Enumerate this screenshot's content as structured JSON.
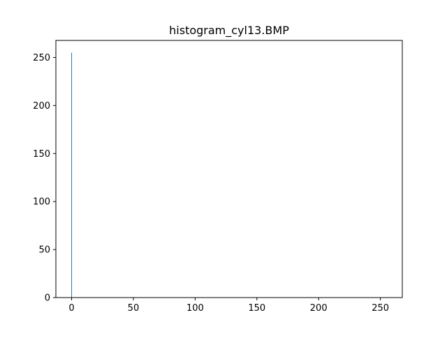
{
  "chart_data": {
    "type": "bar",
    "title": "histogram_cyl13.BMP",
    "xlabel": "",
    "ylabel": "",
    "xlim": [
      -12.75,
      267.75
    ],
    "ylim": [
      0,
      267.75
    ],
    "xticks": [
      0,
      50,
      100,
      150,
      200,
      250
    ],
    "yticks": [
      0,
      50,
      100,
      150,
      200,
      250
    ],
    "grid": false,
    "legend": "none",
    "bar_color": "#1f77b4",
    "x": [
      0
    ],
    "values": [
      255
    ]
  }
}
